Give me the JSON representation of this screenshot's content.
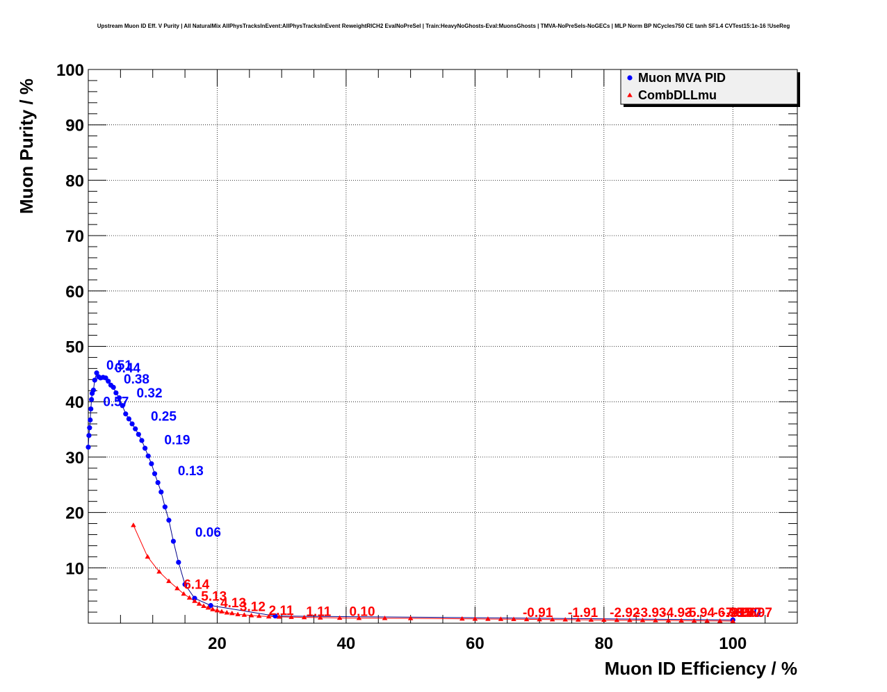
{
  "chart_data": {
    "type": "scatter",
    "title": "Upstream Muon ID Eff. V Purity | All NaturalMix AllPhysTracksInEvent:AllPhysTracksInEvent ReweightRICH2 EvalNoPreSel | Train:HeavyNoGhosts-Eval:MuonsGhosts | TMVA-NoPreSels-NoGECs | MLP Norm BP NCycles750 CE tanh SF1.4 CVTest15:1e-16 !UseReg",
    "xlabel": "Muon ID Efficiency / %",
    "ylabel": "Muon Purity / %",
    "xlim": [
      0,
      110
    ],
    "ylim": [
      0,
      100
    ],
    "xticks": [
      20,
      40,
      60,
      80,
      100
    ],
    "yticks": [
      10,
      20,
      30,
      40,
      50,
      60,
      70,
      80,
      90,
      100
    ],
    "grid": true,
    "legend_position": "top-right",
    "series": [
      {
        "name": "Muon MVA PID",
        "color": "#0000ff",
        "marker": "circle",
        "x": [
          0.0,
          0.1,
          0.2,
          0.3,
          0.4,
          0.5,
          0.6,
          0.8,
          1.0,
          1.3,
          1.6,
          1.9,
          2.3,
          2.7,
          3.1,
          3.5,
          3.9,
          4.3,
          4.8,
          5.3,
          5.8,
          6.3,
          6.8,
          7.3,
          7.8,
          8.3,
          8.8,
          9.3,
          9.8,
          10.3,
          10.8,
          11.3,
          11.9,
          12.5,
          13.2,
          14.0,
          15.0,
          16.5,
          19.0,
          29.0,
          100.0
        ],
        "y": [
          31.8,
          33.9,
          35.3,
          36.7,
          38.7,
          40.4,
          41.5,
          42.1,
          43.9,
          45.2,
          44.5,
          44.3,
          44.4,
          44.3,
          43.7,
          43.0,
          42.6,
          41.6,
          40.7,
          39.3,
          37.8,
          36.9,
          36.0,
          35.1,
          34.1,
          33.0,
          31.6,
          30.2,
          28.8,
          27.0,
          25.4,
          23.7,
          21.0,
          18.6,
          14.8,
          11.0,
          7.0,
          4.5,
          3.2,
          1.3,
          0.6
        ],
        "labels": [
          {
            "text": "0.57",
            "x": 2.3,
            "y": 39.2
          },
          {
            "text": "0.51",
            "x": 2.8,
            "y": 45.8
          },
          {
            "text": "0.44",
            "x": 4.1,
            "y": 45.3
          },
          {
            "text": "0.38",
            "x": 5.5,
            "y": 43.3
          },
          {
            "text": "0.32",
            "x": 7.5,
            "y": 40.8
          },
          {
            "text": "0.25",
            "x": 9.7,
            "y": 36.6
          },
          {
            "text": "0.19",
            "x": 11.8,
            "y": 32.3
          },
          {
            "text": "0.13",
            "x": 13.9,
            "y": 26.7
          },
          {
            "text": "0.06",
            "x": 16.6,
            "y": 15.6
          },
          {
            "text": "0.00",
            "x": 100.4,
            "y": 1.1
          }
        ]
      },
      {
        "name": "CombDLLmu",
        "color": "#ff0000",
        "marker": "triangle",
        "x": [
          7.0,
          9.2,
          11.0,
          12.5,
          13.8,
          14.8,
          15.7,
          16.5,
          17.2,
          17.9,
          18.6,
          19.3,
          20.0,
          20.7,
          21.5,
          22.3,
          23.2,
          24.2,
          25.3,
          26.5,
          28.0,
          29.6,
          31.5,
          33.5,
          36.0,
          39.0,
          42.0,
          46.0,
          50.0,
          58.0,
          60.0,
          62.0,
          64.0,
          66.0,
          68.0,
          70.0,
          72.0,
          74.0,
          76.0,
          78.0,
          80.0,
          82.0,
          84.0,
          86.0,
          88.0,
          90.0,
          92.0,
          94.0,
          96.0,
          98.0,
          100.0
        ],
        "y": [
          17.7,
          12.0,
          9.3,
          7.6,
          6.3,
          5.3,
          4.6,
          4.0,
          3.5,
          3.1,
          2.8,
          2.5,
          2.3,
          2.1,
          1.9,
          1.8,
          1.6,
          1.5,
          1.4,
          1.3,
          1.2,
          1.15,
          1.1,
          1.05,
          1.0,
          0.95,
          0.92,
          0.9,
          0.88,
          0.8,
          0.78,
          0.76,
          0.74,
          0.72,
          0.7,
          0.68,
          0.66,
          0.64,
          0.62,
          0.6,
          0.58,
          0.56,
          0.54,
          0.52,
          0.5,
          0.48,
          0.46,
          0.44,
          0.42,
          0.4,
          0.38
        ],
        "labels": [
          {
            "text": "6.14",
            "x": 14.8,
            "y": 6.2
          },
          {
            "text": "5.13",
            "x": 17.5,
            "y": 4.1
          },
          {
            "text": "4.13",
            "x": 20.5,
            "y": 2.9
          },
          {
            "text": "3.12",
            "x": 23.5,
            "y": 2.2
          },
          {
            "text": "2.11",
            "x": 28.0,
            "y": 1.5
          },
          {
            "text": "1.11",
            "x": 33.8,
            "y": 1.3
          },
          {
            "text": "0.10",
            "x": 40.5,
            "y": 1.3
          },
          {
            "text": "-0.91",
            "x": 67.4,
            "y": 1.1
          },
          {
            "text": "-1.91",
            "x": 74.4,
            "y": 1.1
          },
          {
            "text": "-2.92",
            "x": 80.9,
            "y": 1.1
          },
          {
            "text": "-3.93",
            "x": 85.0,
            "y": 1.1
          },
          {
            "text": "-4.93",
            "x": 89.0,
            "y": 1.1
          },
          {
            "text": "-5.94",
            "x": 92.5,
            "y": 1.1
          },
          {
            "text": "-6.95",
            "x": 97.0,
            "y": 1.1
          },
          {
            "text": "-7.95",
            "x": 98.2,
            "y": 1.1
          },
          {
            "text": "-8.96",
            "x": 99.0,
            "y": 1.1
          },
          {
            "text": "-9.97",
            "x": 99.8,
            "y": 1.1
          },
          {
            "text": "-10.97",
            "x": 100.3,
            "y": 1.1
          }
        ]
      }
    ]
  }
}
